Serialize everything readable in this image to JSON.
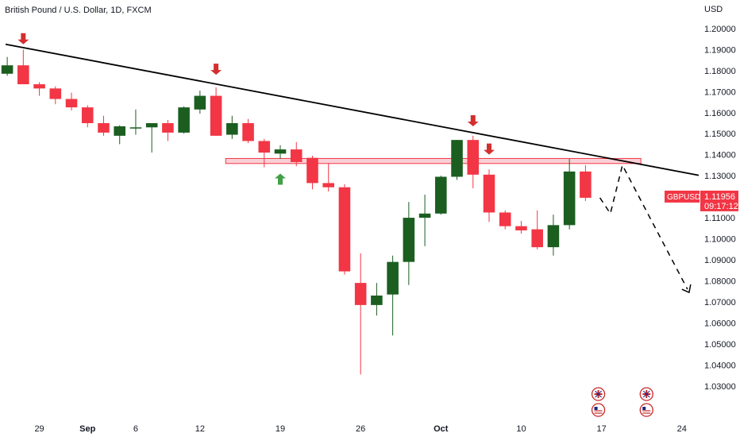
{
  "header": {
    "title": "British Pound / U.S. Dollar, 1D, FXCM",
    "currency": "USD"
  },
  "price_tag": {
    "symbol": "GBPUSD",
    "price": "1.11956",
    "countdown": "09:17:12",
    "color": "#f23645"
  },
  "colors": {
    "up": "#1b5e20",
    "down": "#f23645",
    "resistance_fill": "#f8c8d0",
    "resistance_stroke": "#f23645",
    "trendline": "#000000",
    "arrow_down": "#d32f2f",
    "arrow_up": "#43a047"
  },
  "chart_data": {
    "type": "candlestick",
    "symbol": "GBPUSD",
    "timeframe": "1D",
    "ylim": [
      1.025,
      1.2045
    ],
    "y_ticks": [
      "1.20000",
      "1.19000",
      "1.18000",
      "1.17000",
      "1.16000",
      "1.15000",
      "1.14000",
      "1.13000",
      "1.12000",
      "1.11000",
      "1.10000",
      "1.09000",
      "1.08000",
      "1.07000",
      "1.06000",
      "1.05000",
      "1.04000",
      "1.03000"
    ],
    "x_ticks": [
      {
        "label": "29",
        "index": 2,
        "bold": false
      },
      {
        "label": "Sep",
        "index": 5,
        "bold": true
      },
      {
        "label": "6",
        "index": 8,
        "bold": false
      },
      {
        "label": "12",
        "index": 12,
        "bold": false
      },
      {
        "label": "19",
        "index": 17,
        "bold": false
      },
      {
        "label": "26",
        "index": 22,
        "bold": false
      },
      {
        "label": "Oct",
        "index": 27,
        "bold": true
      },
      {
        "label": "10",
        "index": 32,
        "bold": false
      },
      {
        "label": "17",
        "index": 37,
        "bold": false
      },
      {
        "label": "24",
        "index": 42,
        "bold": false
      }
    ],
    "index_range": [
      -0.45,
      43.05
    ],
    "candles": [
      {
        "i": 0,
        "o": 1.1785,
        "h": 1.1865,
        "l": 1.1775,
        "c": 1.1825
      },
      {
        "i": 1,
        "o": 1.1825,
        "h": 1.19,
        "l": 1.1735,
        "c": 1.1735
      },
      {
        "i": 2,
        "o": 1.1735,
        "h": 1.1745,
        "l": 1.168,
        "c": 1.1715
      },
      {
        "i": 3,
        "o": 1.1715,
        "h": 1.1725,
        "l": 1.164,
        "c": 1.1665
      },
      {
        "i": 4,
        "o": 1.1665,
        "h": 1.1695,
        "l": 1.161,
        "c": 1.1625
      },
      {
        "i": 5,
        "o": 1.1625,
        "h": 1.1635,
        "l": 1.153,
        "c": 1.155
      },
      {
        "i": 6,
        "o": 1.155,
        "h": 1.1585,
        "l": 1.149,
        "c": 1.1505
      },
      {
        "i": 7,
        "o": 1.149,
        "h": 1.154,
        "l": 1.145,
        "c": 1.1535
      },
      {
        "i": 8,
        "o": 1.1525,
        "h": 1.1615,
        "l": 1.1495,
        "c": 1.153
      },
      {
        "i": 9,
        "o": 1.153,
        "h": 1.1545,
        "l": 1.141,
        "c": 1.155
      },
      {
        "i": 10,
        "o": 1.155,
        "h": 1.1565,
        "l": 1.1465,
        "c": 1.1505
      },
      {
        "i": 11,
        "o": 1.1505,
        "h": 1.163,
        "l": 1.15,
        "c": 1.1625
      },
      {
        "i": 12,
        "o": 1.1615,
        "h": 1.1705,
        "l": 1.1595,
        "c": 1.168
      },
      {
        "i": 13,
        "o": 1.168,
        "h": 1.172,
        "l": 1.149,
        "c": 1.149
      },
      {
        "i": 14,
        "o": 1.1495,
        "h": 1.1585,
        "l": 1.1475,
        "c": 1.155
      },
      {
        "i": 15,
        "o": 1.155,
        "h": 1.157,
        "l": 1.1455,
        "c": 1.1465
      },
      {
        "i": 16,
        "o": 1.1465,
        "h": 1.1475,
        "l": 1.134,
        "c": 1.141
      },
      {
        "i": 17,
        "o": 1.1405,
        "h": 1.1445,
        "l": 1.138,
        "c": 1.1425
      },
      {
        "i": 18,
        "o": 1.1425,
        "h": 1.146,
        "l": 1.1345,
        "c": 1.1365
      },
      {
        "i": 19,
        "o": 1.1385,
        "h": 1.1395,
        "l": 1.1235,
        "c": 1.1265
      },
      {
        "i": 20,
        "o": 1.1265,
        "h": 1.136,
        "l": 1.1225,
        "c": 1.1245
      },
      {
        "i": 21,
        "o": 1.1245,
        "h": 1.126,
        "l": 1.083,
        "c": 1.0845
      },
      {
        "i": 22,
        "o": 1.079,
        "h": 1.093,
        "l": 1.0355,
        "c": 1.0685
      },
      {
        "i": 23,
        "o": 1.0685,
        "h": 1.079,
        "l": 1.0635,
        "c": 1.073
      },
      {
        "i": 24,
        "o": 1.0735,
        "h": 1.092,
        "l": 1.054,
        "c": 1.089
      },
      {
        "i": 25,
        "o": 1.089,
        "h": 1.1175,
        "l": 1.078,
        "c": 1.11
      },
      {
        "i": 26,
        "o": 1.11,
        "h": 1.121,
        "l": 1.0965,
        "c": 1.112
      },
      {
        "i": 27,
        "o": 1.112,
        "h": 1.13,
        "l": 1.1115,
        "c": 1.1295
      },
      {
        "i": 28,
        "o": 1.1295,
        "h": 1.147,
        "l": 1.128,
        "c": 1.147
      },
      {
        "i": 29,
        "o": 1.147,
        "h": 1.149,
        "l": 1.124,
        "c": 1.1305
      },
      {
        "i": 30,
        "o": 1.1305,
        "h": 1.133,
        "l": 1.108,
        "c": 1.1125
      },
      {
        "i": 31,
        "o": 1.1125,
        "h": 1.1135,
        "l": 1.1045,
        "c": 1.106
      },
      {
        "i": 32,
        "o": 1.106,
        "h": 1.1085,
        "l": 1.1025,
        "c": 1.104
      },
      {
        "i": 33,
        "o": 1.1045,
        "h": 1.1135,
        "l": 1.095,
        "c": 1.096
      },
      {
        "i": 34,
        "o": 1.096,
        "h": 1.1115,
        "l": 1.092,
        "c": 1.1065
      },
      {
        "i": 35,
        "o": 1.1065,
        "h": 1.138,
        "l": 1.1045,
        "c": 1.132
      },
      {
        "i": 36,
        "o": 1.132,
        "h": 1.135,
        "l": 1.118,
        "c": 1.1195
      }
    ],
    "drawings": {
      "trendline": [
        {
          "x": -0.1,
          "y": 1.1925
        },
        {
          "x": 43.05,
          "y": 1.1302
        }
      ],
      "resistance_zone": {
        "x0": 13.6,
        "x1": 39.45,
        "y0": 1.1358,
        "y1": 1.1382
      },
      "projection_path": [
        {
          "x": 36.9,
          "y": 1.1195
        },
        {
          "x": 37.55,
          "y": 1.112
        },
        {
          "x": 38.3,
          "y": 1.135
        },
        {
          "x": 42.35,
          "y": 1.076
        }
      ],
      "projection_arrowhead": {
        "x": 42.45,
        "y": 1.0745
      },
      "arrows_down": [
        {
          "x": 1,
          "y": 1.1925
        },
        {
          "x": 13,
          "y": 1.178
        },
        {
          "x": 29,
          "y": 1.1535
        },
        {
          "x": 30,
          "y": 1.14
        }
      ],
      "arrows_up": [
        {
          "x": 17,
          "y": 1.131
        }
      ]
    },
    "events": [
      {
        "x": 36.8,
        "flags": [
          "gb",
          "us"
        ]
      },
      {
        "x": 39.8,
        "flags": [
          "gb",
          "us"
        ]
      }
    ]
  }
}
